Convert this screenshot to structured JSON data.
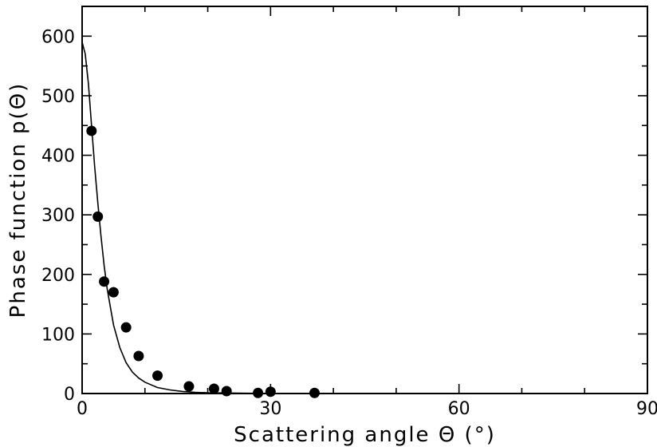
{
  "chart_data": {
    "type": "scatter",
    "title": "",
    "xlabel": "Scattering angle Θ (°)",
    "ylabel": "Phase function p(Θ)",
    "xlim": [
      0,
      90
    ],
    "ylim": [
      0,
      650
    ],
    "grid": false,
    "legend": "none",
    "x_ticks": [
      {
        "value": 0,
        "label": "0"
      },
      {
        "value": 30,
        "label": "30"
      },
      {
        "value": 60,
        "label": "60"
      },
      {
        "value": 90,
        "label": "90"
      }
    ],
    "x_minor_ticks": [
      10,
      20,
      40,
      50,
      70,
      80
    ],
    "y_ticks": [
      {
        "value": 0,
        "label": "0"
      },
      {
        "value": 100,
        "label": "100"
      },
      {
        "value": 200,
        "label": "200"
      },
      {
        "value": 300,
        "label": "300"
      },
      {
        "value": 400,
        "label": "400"
      },
      {
        "value": 500,
        "label": "500"
      },
      {
        "value": 600,
        "label": "600"
      }
    ],
    "y_minor_ticks": [
      50,
      150,
      250,
      350,
      450,
      550
    ],
    "series": [
      {
        "kind": "points",
        "x": [
          1.5,
          2.5,
          3.5,
          5.0,
          7.0,
          9.0,
          12.0,
          17.0,
          21.0,
          23.0,
          28.0,
          30.0,
          37.0
        ],
        "y": [
          441,
          297,
          188,
          170,
          111,
          63,
          30,
          12,
          8,
          4,
          1,
          3,
          1
        ]
      },
      {
        "kind": "line",
        "x": [
          0,
          0.5,
          1,
          1.5,
          2,
          2.5,
          3,
          3.5,
          4,
          5,
          6,
          7,
          8,
          9,
          10,
          12,
          14,
          16,
          18,
          20,
          25,
          30,
          40,
          50
        ],
        "y": [
          590,
          570,
          520,
          450,
          380,
          320,
          265,
          215,
          175,
          115,
          77,
          52,
          36,
          26,
          19,
          10,
          6,
          3.5,
          2,
          1.2,
          0.5,
          0.2,
          0.05,
          0.01
        ]
      }
    ]
  }
}
